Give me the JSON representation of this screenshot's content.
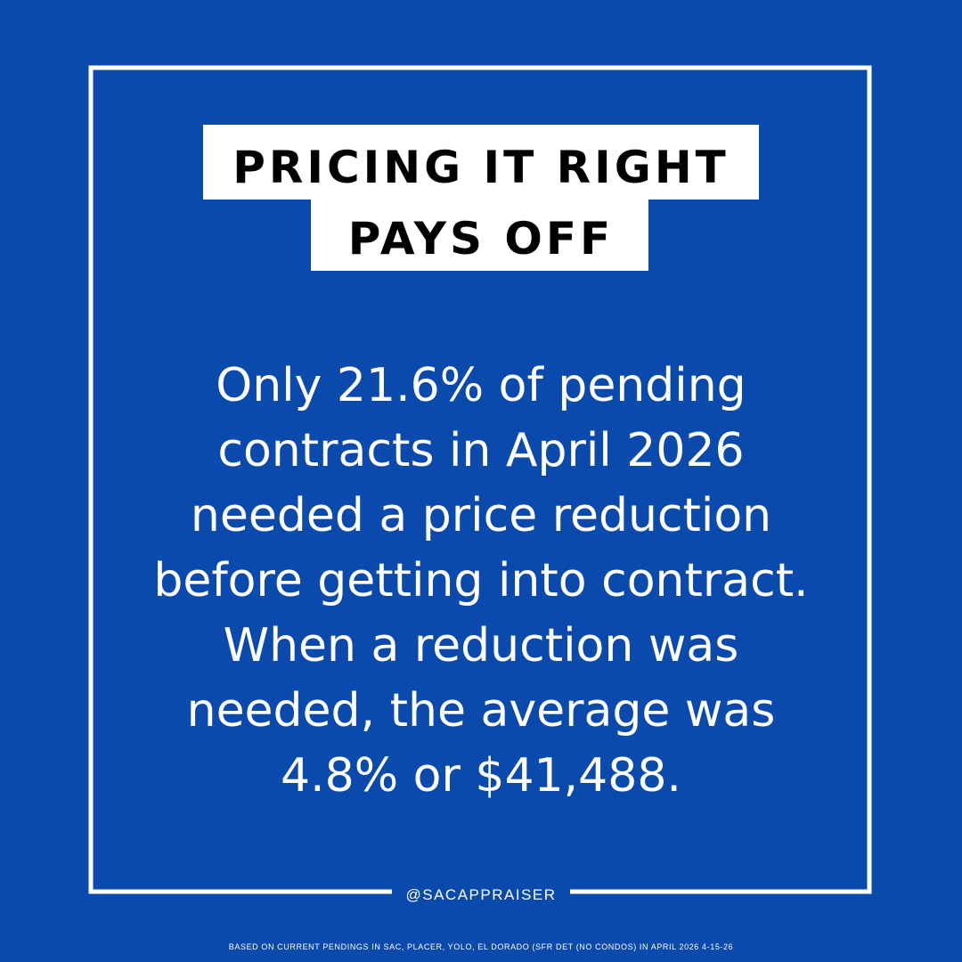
{
  "header": {
    "title_lines": [
      "PRICING IT RIGHT",
      "PAYS OFF"
    ]
  },
  "body": {
    "lines": [
      "Only 21.6% of pending",
      "contracts in April 2026",
      "needed a price reduction",
      "before getting into contract.",
      "When a reduction was",
      "needed, the average was",
      "4.8% or $41,488."
    ]
  },
  "footer": {
    "handle": "@SACAPPRAISER",
    "note": "BASED ON CURRENT PENDINGS IN SAC, PLACER, YOLO, EL DORADO (SFR DET (NO CONDOS) IN APRIL 2026 4-15-26"
  }
}
